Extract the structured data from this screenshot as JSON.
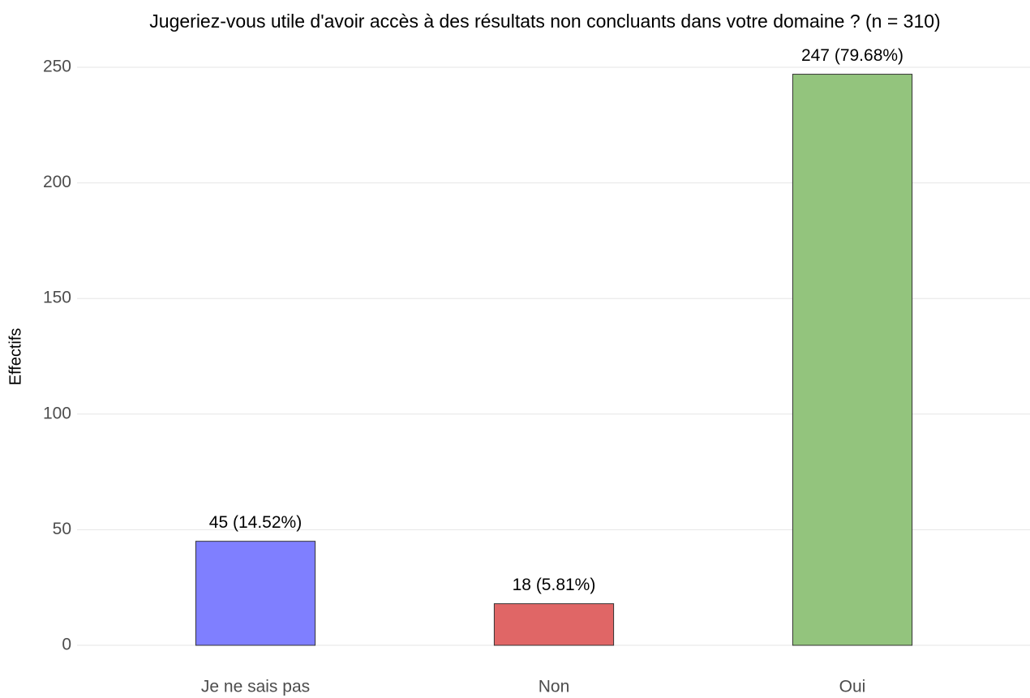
{
  "chart_data": {
    "type": "bar",
    "title": "Jugeriez-vous utile d'avoir accès à des résultats non concluants dans votre domaine ? (n = 310)",
    "y_label": "Effectifs",
    "categories": [
      "Je ne sais pas",
      "Non",
      "Oui"
    ],
    "values": [
      45,
      18,
      247
    ],
    "value_labels": [
      "45 (14.52%)",
      "18 (5.81%)",
      "247 (79.68%)"
    ],
    "colors": [
      "#7f7fff",
      "#e06666",
      "#93c47d"
    ],
    "ylim": [
      0,
      250
    ],
    "yticks": [
      0,
      50,
      100,
      150,
      200,
      250
    ],
    "grid": true
  }
}
